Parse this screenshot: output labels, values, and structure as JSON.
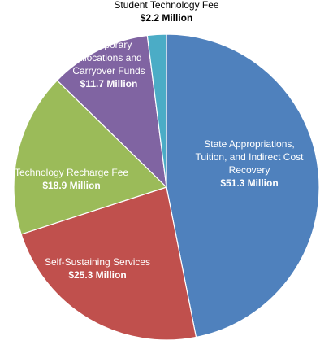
{
  "chart_data": {
    "type": "pie",
    "start_angle_deg": 0,
    "direction": "clockwise",
    "slices": [
      {
        "label": "State Appropriations, Tuition, and Indirect Cost Recovery",
        "label_lines": [
          "State Appropriations,",
          "Tuition, and Indirect Cost",
          "Recovery"
        ],
        "value_label": "$51.3 Million",
        "value": 51.3,
        "unit": "Million",
        "color": "#4F81BD",
        "label_color": "#ffffff"
      },
      {
        "label": "Self-Sustaining Services",
        "label_lines": [
          "Self-Sustaining Services"
        ],
        "value_label": "$25.3 Million",
        "value": 25.3,
        "unit": "Million",
        "color": "#C0504D",
        "label_color": "#ffffff"
      },
      {
        "label": "Technology Recharge Fee",
        "label_lines": [
          "Technology Recharge Fee"
        ],
        "value_label": "$18.9 Million",
        "value": 18.9,
        "unit": "Million",
        "color": "#9BBB59",
        "label_color": "#ffffff"
      },
      {
        "label": "Temporary Allocations and Carryover Funds",
        "label_lines": [
          "Temporary",
          "Allocations and",
          "Carryover Funds"
        ],
        "value_label": "$11.7 Million",
        "value": 11.7,
        "unit": "Million",
        "color": "#8064A2",
        "label_color": "#ffffff"
      },
      {
        "label": "Student Technology Fee",
        "label_lines": [
          "Student Technology Fee"
        ],
        "value_label": "$2.2 Million",
        "value": 2.2,
        "unit": "Million",
        "color": "#4BACC6",
        "label_color": "#000000"
      }
    ]
  }
}
